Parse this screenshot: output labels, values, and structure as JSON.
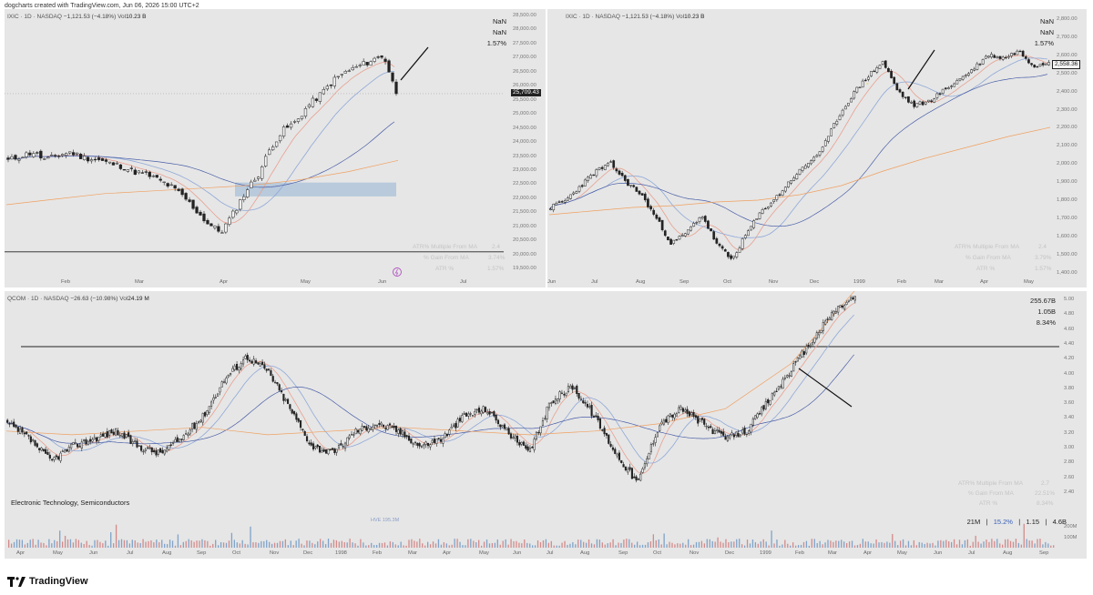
{
  "header": {
    "text": "dogcharts created with TradingView.com, Jun 06, 2026 15:00 UTC+2"
  },
  "logo": {
    "text": "TradingView"
  },
  "colors": {
    "panel_bg": "#e6e6e6",
    "ma_fast": "#e8a090",
    "ma_mid": "#8fa8d8",
    "ma_slow": "#4a5fa8",
    "ma_200": "#f0a060",
    "zone": "#a8c0d8",
    "candle_dark": "#222222",
    "vol_red": "#d48a8a",
    "vol_blue": "#7fa3c9"
  },
  "panels": [
    {
      "legend": {
        "symbol": "IXIC · 1D · NASDAQ",
        "change": "−1,121.53 (−4.18%)",
        "vol_label": "Vol",
        "vol": "10.23 B"
      },
      "stats": [
        "NaN",
        "NaN",
        "1.57%"
      ],
      "faint_table": [
        [
          "ATR% Multiple From MA",
          "2.4"
        ],
        [
          "% Gain From MA",
          "3.74%"
        ],
        [
          "ATR %",
          "1.57%"
        ]
      ],
      "price_tag": "25,709.43",
      "y_ticks": [
        "28,500.00",
        "28,000.00",
        "27,500.00",
        "27,000.00",
        "26,500.00",
        "26,000.00",
        "25,500.00",
        "25,000.00",
        "24,500.00",
        "24,000.00",
        "23,500.00",
        "23,000.00",
        "22,500.00",
        "22,000.00",
        "21,500.00",
        "21,000.00",
        "20,500.00",
        "20,000.00",
        "19,500.00"
      ],
      "x_ticks": [
        "Feb",
        "Mar",
        "Apr",
        "May",
        "Jun",
        "Jul"
      ]
    },
    {
      "legend": {
        "symbol": "IXIC · 1D · NASDAQ",
        "change": "−1,121.53 (−4.18%)",
        "vol_label": "Vol",
        "vol": "10.23 B"
      },
      "stats": [
        "NaN",
        "NaN",
        "1.57%"
      ],
      "faint_table": [
        [
          "ATR% Multiple From MA",
          "2.4"
        ],
        [
          "% Gain From MA",
          "3.79%"
        ],
        [
          "ATR %",
          "1.57%"
        ]
      ],
      "price_tag": "2,558.36",
      "y_ticks": [
        "2,800.00",
        "2,700.00",
        "2,600.00",
        "2,500.00",
        "2,400.00",
        "2,300.00",
        "2,200.00",
        "2,100.00",
        "2,000.00",
        "1,900.00",
        "1,800.00",
        "1,700.00",
        "1,600.00",
        "1,500.00",
        "1,400.00"
      ],
      "x_ticks": [
        "Jun",
        "Jul",
        "Aug",
        "Sep",
        "Oct",
        "Nov",
        "Dec",
        "1999",
        "Feb",
        "Mar",
        "Apr",
        "May"
      ]
    },
    {
      "legend": {
        "symbol": "QCOM · 1D · NASDAQ",
        "change": "−26.63 (−10.98%)",
        "vol_label": "Vol",
        "vol": "24.19 M"
      },
      "stats": [
        "255.67B",
        "1.05B",
        "8.34%"
      ],
      "faint_table": [
        [
          "ATR% Multiple From MA",
          "2.7"
        ],
        [
          "% Gain From MA",
          "22.51%"
        ],
        [
          "ATR %",
          "8.34%"
        ]
      ],
      "sector": "Electronic Technology, Semiconductors",
      "footer_stats": {
        "a": "21M",
        "b": "15.2%",
        "c": "1.15",
        "d": "4.6B",
        "sep": "|"
      },
      "y_ticks": [
        "5.00",
        "4.80",
        "4.60",
        "4.40",
        "4.20",
        "4.00",
        "3.80",
        "3.60",
        "3.40",
        "3.20",
        "3.00",
        "2.80",
        "2.60",
        "2.40"
      ],
      "vol_ticks": [
        "200M",
        "100M"
      ],
      "vol_annotation": "HVE 195.3M",
      "x_ticks": [
        "Apr",
        "May",
        "Jun",
        "Jul",
        "Aug",
        "Sep",
        "Oct",
        "Nov",
        "Dec",
        "1998",
        "Feb",
        "Mar",
        "Apr",
        "May",
        "Jun",
        "Jul",
        "Aug",
        "Sep",
        "Oct",
        "Nov",
        "Dec",
        "1999",
        "Feb",
        "Mar",
        "Apr",
        "May",
        "Jun",
        "Jul",
        "Aug",
        "Sep"
      ]
    }
  ],
  "chart_data": [
    {
      "type": "candlestick",
      "title": "IXIC · 1D · NASDAQ",
      "ylim": [
        19500,
        28500
      ],
      "x_ticks": [
        "Feb",
        "Mar",
        "Apr",
        "May",
        "Jun",
        "Jul"
      ],
      "annotations": {
        "last_price": 25709.43,
        "horizontal_line": 20000,
        "zone": [
          22000,
          22500
        ]
      },
      "series": [
        {
          "name": "close",
          "values": [
            23300,
            23450,
            23600,
            23300,
            23500,
            23600,
            23400,
            23350,
            23200,
            23100,
            22900,
            22800,
            22600,
            22350,
            22000,
            21500,
            21000,
            20700,
            21400,
            22200,
            22800,
            23800,
            24400,
            24700,
            25300,
            25700,
            26200,
            26500,
            26700,
            26900,
            27100,
            25709
          ]
        }
      ]
    },
    {
      "type": "candlestick",
      "title": "IXIC · 1D · NASDAQ",
      "ylim": [
        1400,
        2800
      ],
      "x_ticks": [
        "Jun",
        "Jul",
        "Aug",
        "Sep",
        "Oct",
        "Nov",
        "Dec",
        "1999",
        "Feb",
        "Mar",
        "Apr",
        "May"
      ],
      "annotations": {
        "last_price": 2558.36
      },
      "series": [
        {
          "name": "close",
          "values": [
            1760,
            1800,
            1880,
            1960,
            2000,
            1900,
            1830,
            1700,
            1560,
            1620,
            1720,
            1560,
            1470,
            1620,
            1740,
            1820,
            1920,
            2000,
            2080,
            2250,
            2380,
            2480,
            2560,
            2400,
            2320,
            2340,
            2400,
            2460,
            2520,
            2600,
            2580,
            2620,
            2540,
            2558
          ]
        }
      ]
    },
    {
      "type": "candlestick",
      "title": "QCOM · 1D · NASDAQ",
      "ylim": [
        2.3,
        5.05
      ],
      "x_ticks": [
        "Apr",
        "May",
        "Jun",
        "Jul",
        "Aug",
        "Sep",
        "Oct",
        "Nov",
        "Dec",
        "1998",
        "Feb",
        "Mar",
        "Apr",
        "May",
        "Jun",
        "Jul",
        "Aug",
        "Sep",
        "Oct",
        "Nov",
        "Dec",
        "1999",
        "Feb",
        "Mar",
        "Apr",
        "May",
        "Jun",
        "Jul",
        "Aug",
        "Sep"
      ],
      "annotations": {
        "horizontal_line": 4.43
      },
      "series": [
        {
          "name": "close",
          "values": [
            3.4,
            3.2,
            2.9,
            3.1,
            3.2,
            3.3,
            3.1,
            3.0,
            3.2,
            3.5,
            4.0,
            4.3,
            4.1,
            3.6,
            3.1,
            3.0,
            3.3,
            3.4,
            3.3,
            3.1,
            3.2,
            3.5,
            3.6,
            3.3,
            3.0,
            3.7,
            3.9,
            3.5,
            3.0,
            2.6,
            3.4,
            3.6,
            3.4,
            3.2,
            3.3,
            3.7,
            4.1,
            4.5,
            4.9,
            5.1
          ]
        }
      ]
    }
  ]
}
